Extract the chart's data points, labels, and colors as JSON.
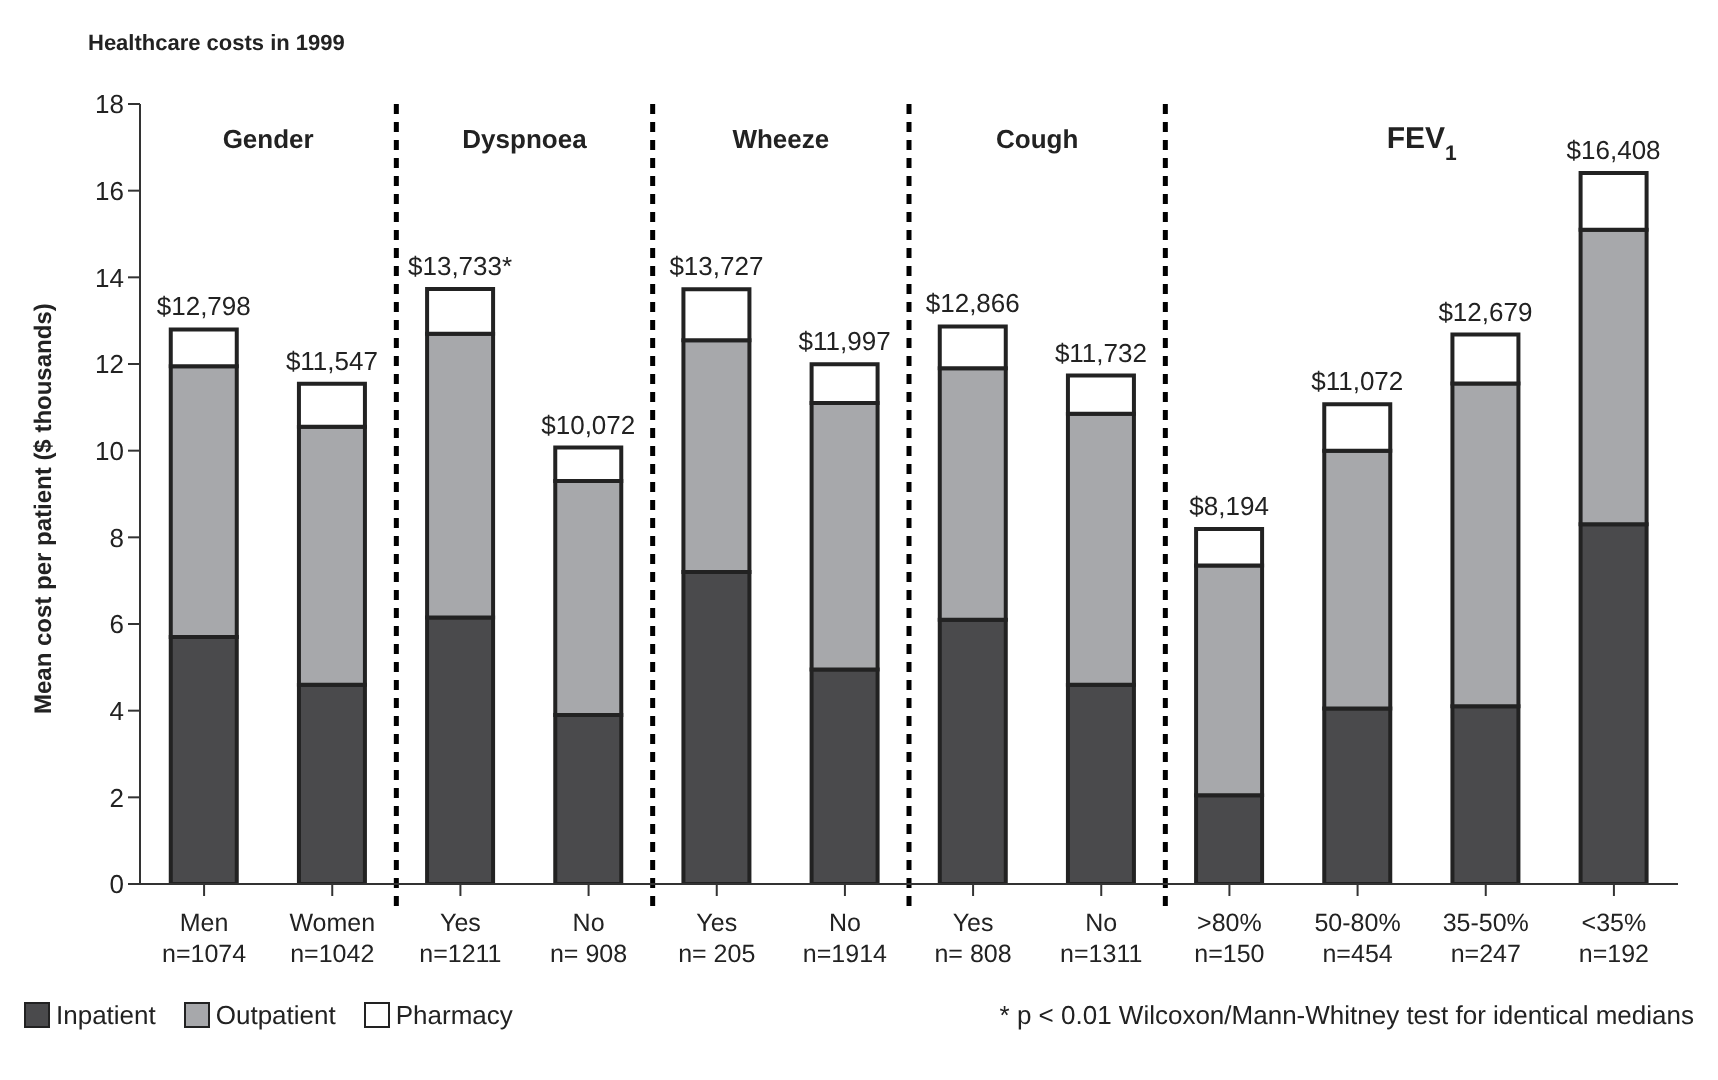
{
  "chart_data": {
    "type": "bar",
    "title": "Healthcare costs in 1999",
    "ylabel": "Mean cost per patient ($ thousands)",
    "categories": [
      "Men\nn=1074",
      "Women\nn=1042",
      "Yes\nn=1211",
      "No\nn= 908",
      "Yes\nn= 205",
      "No\nn=1914",
      "Yes\nn= 808",
      "No\nn=1311",
      ">80%\nn=150",
      "50-80%\nn=454",
      "35-50%\nn=247",
      "<35%\nn=192"
    ],
    "stacked": true,
    "series": [
      {
        "name": "Inpatient",
        "color": "#4a4a4c",
        "values": [
          5.7,
          4.6,
          6.15,
          3.9,
          7.2,
          4.95,
          6.1,
          4.6,
          2.05,
          4.05,
          4.1,
          8.3
        ]
      },
      {
        "name": "Outpatient",
        "color": "#a7a8ab",
        "values": [
          6.25,
          5.95,
          6.55,
          5.4,
          5.35,
          6.15,
          5.8,
          6.25,
          5.3,
          5.95,
          7.45,
          6.8
        ]
      },
      {
        "name": "Pharmacy",
        "color": "#ffffff",
        "values": [
          0.848,
          0.997,
          1.033,
          0.772,
          1.177,
          0.897,
          0.966,
          0.882,
          0.844,
          1.072,
          1.129,
          1.308
        ]
      }
    ],
    "totals": [
      "$12,798",
      "$11,547",
      "$13,733*",
      "$10,072",
      "$13,727",
      "$11,997",
      "$12,866",
      "$11,732",
      "$8,194",
      "$11,072",
      "$12,679",
      "$16,408"
    ],
    "ylim": [
      0,
      18
    ],
    "yticks": [
      0,
      2,
      4,
      6,
      8,
      10,
      12,
      14,
      16,
      18
    ],
    "grid": false,
    "legend": "bottom left",
    "annotations": [
      "Gender",
      "Dyspnoea",
      "Wheeze",
      "Cough",
      "FEV$_{1}$",
      "* p < 0.01 Wilcoxon/Mann-Whitney test for identical medians"
    ]
  }
}
